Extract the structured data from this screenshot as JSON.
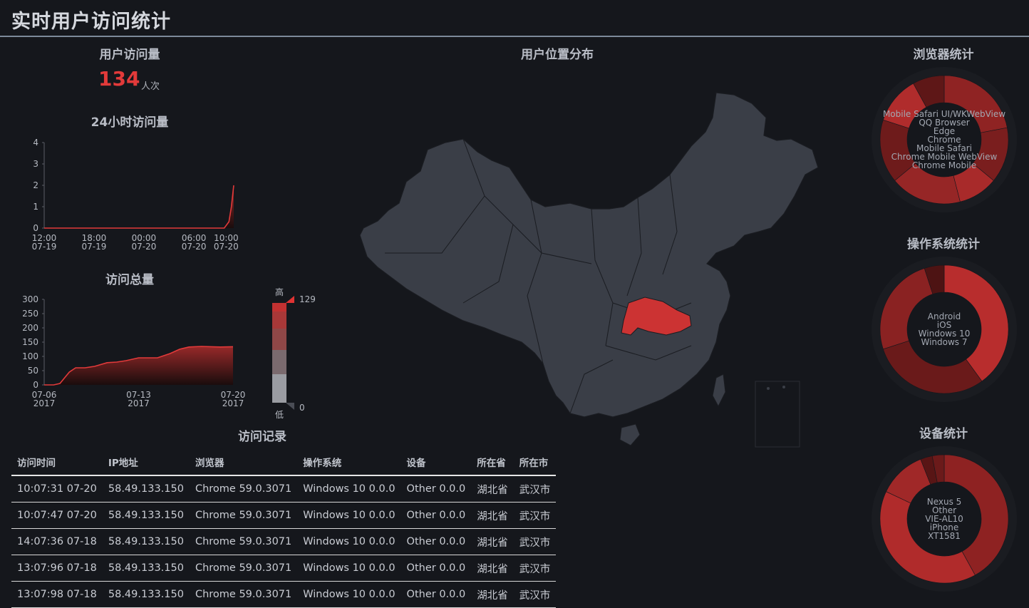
{
  "header": {
    "title": "实时用户访问统计"
  },
  "visits": {
    "title": "用户访问量",
    "count": "134",
    "unit": "人次"
  },
  "hourly": {
    "title": "24小时访问量",
    "chart_data": {
      "type": "area",
      "y_ticks": [
        "0",
        "1",
        "2",
        "3",
        "4"
      ],
      "x_ticks": [
        [
          "12:00",
          "07-19"
        ],
        [
          "18:00",
          "07-19"
        ],
        [
          "00:00",
          "07-20"
        ],
        [
          "06:00",
          "07-20"
        ],
        [
          "10:00",
          "07-20"
        ]
      ],
      "ylim": [
        0,
        4
      ],
      "points": [
        [
          0,
          0
        ],
        [
          0.5,
          0
        ],
        [
          1,
          0
        ],
        [
          1.5,
          0
        ],
        [
          2,
          0
        ],
        [
          2.5,
          0
        ],
        [
          3,
          0
        ],
        [
          3.5,
          0
        ],
        [
          3.8,
          0
        ],
        [
          3.9,
          0.3
        ],
        [
          3.95,
          1
        ],
        [
          4,
          2
        ]
      ]
    }
  },
  "total": {
    "title": "访问总量",
    "chart_data": {
      "type": "area",
      "y_ticks": [
        "0",
        "50",
        "100",
        "150",
        "200",
        "250",
        "300"
      ],
      "x_ticks": [
        [
          "07-06",
          "2017"
        ],
        [
          "07-13",
          "2017"
        ],
        [
          "07-20",
          "2017"
        ]
      ],
      "ylim": [
        0,
        300
      ],
      "points": [
        [
          0,
          0
        ],
        [
          0.3,
          0
        ],
        [
          0.5,
          5
        ],
        [
          0.8,
          45
        ],
        [
          1,
          60
        ],
        [
          1.3,
          60
        ],
        [
          1.6,
          65
        ],
        [
          2,
          78
        ],
        [
          2.3,
          80
        ],
        [
          2.6,
          85
        ],
        [
          3,
          95
        ],
        [
          3.3,
          95
        ],
        [
          3.6,
          95
        ],
        [
          4,
          110
        ],
        [
          4.3,
          125
        ],
        [
          4.6,
          133
        ],
        [
          5,
          135
        ],
        [
          5.3,
          134
        ],
        [
          5.6,
          133
        ],
        [
          6,
          134
        ]
      ]
    }
  },
  "map": {
    "title": "用户位置分布",
    "legend": {
      "high_label": "高",
      "low_label": "低",
      "max": "129",
      "min": "0"
    },
    "highlight_region": "湖北省",
    "colors": {
      "land": "#3a3e47",
      "highlight": "#cc3333",
      "border": "#1a1c21"
    }
  },
  "records": {
    "title": "访问记录",
    "columns": [
      "访问时间",
      "IP地址",
      "浏览器",
      "操作系统",
      "设备",
      "所在省",
      "所在市"
    ],
    "rows": [
      [
        "10:07:31 07-20",
        "58.49.133.150",
        "Chrome 59.0.3071",
        "Windows 10 0.0.0",
        "Other 0.0.0",
        "湖北省",
        "武汉市"
      ],
      [
        "10:07:47 07-20",
        "58.49.133.150",
        "Chrome 59.0.3071",
        "Windows 10 0.0.0",
        "Other 0.0.0",
        "湖北省",
        "武汉市"
      ],
      [
        "14:07:36 07-18",
        "58.49.133.150",
        "Chrome 59.0.3071",
        "Windows 10 0.0.0",
        "Other 0.0.0",
        "湖北省",
        "武汉市"
      ],
      [
        "13:07:96 07-18",
        "58.49.133.150",
        "Chrome 59.0.3071",
        "Windows 10 0.0.0",
        "Other 0.0.0",
        "湖北省",
        "武汉市"
      ],
      [
        "13:07:98 07-18",
        "58.49.133.150",
        "Chrome 59.0.3071",
        "Windows 10 0.0.0",
        "Other 0.0.0",
        "湖北省",
        "武汉市"
      ]
    ]
  },
  "browser": {
    "title": "浏览器统计",
    "chart_data": {
      "type": "pie",
      "labels": [
        "Mobile Safari UI/WKWebView",
        "QQ Browser",
        "Edge",
        "Chrome",
        "Mobile Safari",
        "Chrome Mobile WebView",
        "Chrome Mobile"
      ],
      "values": [
        22,
        14,
        10,
        18,
        16,
        12,
        8
      ],
      "colors": [
        "#8f2323",
        "#7a1e1e",
        "#a82a2a",
        "#962626",
        "#6e1b1b",
        "#b02c2c",
        "#5e1717"
      ]
    }
  },
  "os": {
    "title": "操作系统统计",
    "chart_data": {
      "type": "pie",
      "labels": [
        "Android",
        "iOS",
        "Windows 10",
        "Windows 7"
      ],
      "values": [
        40,
        30,
        25,
        5
      ],
      "colors": [
        "#b82d2d",
        "#6a1a1a",
        "#8a2222",
        "#4d1313"
      ]
    }
  },
  "device": {
    "title": "设备统计",
    "chart_data": {
      "type": "pie",
      "labels": [
        "Nexus 5",
        "Other",
        "VIE-AL10",
        "iPhone",
        "XT1581"
      ],
      "values": [
        42,
        40,
        12,
        3,
        3
      ],
      "colors": [
        "#8e2222",
        "#b02b2b",
        "#a02828",
        "#581515",
        "#6b1a1a"
      ]
    }
  }
}
